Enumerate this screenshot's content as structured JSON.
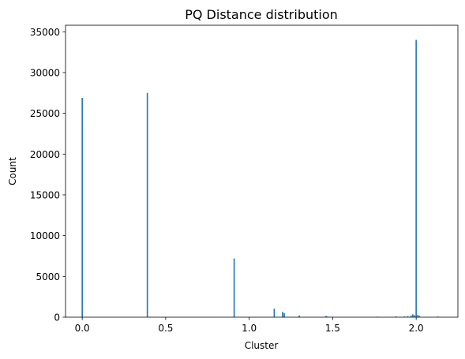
{
  "chart_data": {
    "type": "bar",
    "title": "PQ Distance distribution",
    "xlabel": "Cluster",
    "ylabel": "Count",
    "xlim": [
      -0.1,
      2.25
    ],
    "ylim": [
      0,
      35800
    ],
    "xticks": [
      0.0,
      0.5,
      1.0,
      1.5,
      2.0
    ],
    "xtick_labels": [
      "0.0",
      "0.5",
      "1.0",
      "1.5",
      "2.0"
    ],
    "yticks": [
      0,
      5000,
      10000,
      15000,
      20000,
      25000,
      30000,
      35000
    ],
    "ytick_labels": [
      "0",
      "5000",
      "10000",
      "15000",
      "20000",
      "25000",
      "30000",
      "35000"
    ],
    "grid": false,
    "color": "#1f77b4",
    "bars": [
      {
        "x": 0.0,
        "value": 26900
      },
      {
        "x": 0.39,
        "value": 27500
      },
      {
        "x": 0.91,
        "value": 7200
      },
      {
        "x": 1.15,
        "value": 1050
      },
      {
        "x": 1.2,
        "value": 650
      },
      {
        "x": 1.21,
        "value": 500
      },
      {
        "x": 1.3,
        "value": 200
      },
      {
        "x": 1.46,
        "value": 150
      },
      {
        "x": 1.47,
        "value": 80
      },
      {
        "x": 1.77,
        "value": 60
      },
      {
        "x": 1.88,
        "value": 100
      },
      {
        "x": 1.93,
        "value": 80
      },
      {
        "x": 1.95,
        "value": 120
      },
      {
        "x": 1.97,
        "value": 200
      },
      {
        "x": 1.98,
        "value": 350
      },
      {
        "x": 1.99,
        "value": 250
      },
      {
        "x": 2.0,
        "value": 34000
      },
      {
        "x": 2.01,
        "value": 300
      },
      {
        "x": 2.02,
        "value": 150
      },
      {
        "x": 2.13,
        "value": 80
      }
    ]
  }
}
